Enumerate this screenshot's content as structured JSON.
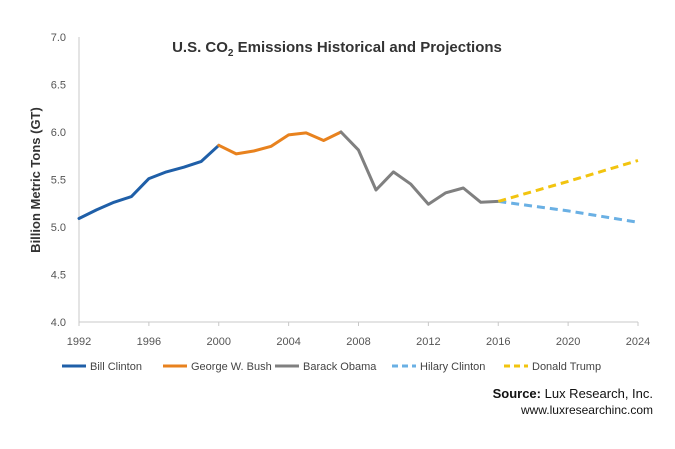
{
  "chart_data": {
    "type": "line",
    "title_parts": {
      "before": "U.S. CO",
      "subscript": "2",
      "after": " Emissions Historical and Projections"
    },
    "ylabel": "Billion Metric Tons (GT)",
    "xlabel": "",
    "xlim": [
      1992,
      2024
    ],
    "ylim": [
      4.0,
      7.0
    ],
    "x_ticks": [
      1992,
      1996,
      2000,
      2004,
      2008,
      2012,
      2016,
      2020,
      2024
    ],
    "y_ticks": [
      "4.0",
      "4.5",
      "5.0",
      "5.5",
      "6.0",
      "6.5",
      "7.0"
    ],
    "grid": false,
    "legend_position": "bottom",
    "series": [
      {
        "name": "Bill Clinton",
        "color": "#1f5fa8",
        "style": "solid",
        "points": [
          [
            1992,
            5.09
          ],
          [
            1993,
            5.18
          ],
          [
            1994,
            5.26
          ],
          [
            1995,
            5.32
          ],
          [
            1996,
            5.51
          ],
          [
            1997,
            5.58
          ],
          [
            1998,
            5.63
          ],
          [
            1999,
            5.69
          ],
          [
            2000,
            5.86
          ]
        ]
      },
      {
        "name": "George W. Bush",
        "color": "#e8821e",
        "style": "solid",
        "points": [
          [
            2000,
            5.86
          ],
          [
            2001,
            5.77
          ],
          [
            2002,
            5.8
          ],
          [
            2003,
            5.85
          ],
          [
            2004,
            5.97
          ],
          [
            2005,
            5.99
          ],
          [
            2006,
            5.91
          ],
          [
            2007,
            6.0
          ]
        ]
      },
      {
        "name": "Barack Obama",
        "color": "#808080",
        "style": "solid",
        "points": [
          [
            2007,
            6.0
          ],
          [
            2008,
            5.81
          ],
          [
            2009,
            5.39
          ],
          [
            2010,
            5.58
          ],
          [
            2011,
            5.45
          ],
          [
            2012,
            5.24
          ],
          [
            2013,
            5.36
          ],
          [
            2014,
            5.41
          ],
          [
            2015,
            5.26
          ],
          [
            2016,
            5.27
          ]
        ]
      },
      {
        "name": "Hilary Clinton",
        "color": "#6ab0e4",
        "style": "dashed",
        "points": [
          [
            2016,
            5.27
          ],
          [
            2020,
            5.17
          ],
          [
            2024,
            5.05
          ]
        ]
      },
      {
        "name": "Donald Trump",
        "color": "#f2c40f",
        "style": "dashed",
        "points": [
          [
            2016,
            5.27
          ],
          [
            2020,
            5.48
          ],
          [
            2024,
            5.7
          ]
        ]
      }
    ]
  },
  "source": {
    "label": "Source:",
    "text": " Lux Research, Inc.",
    "url": "www.luxresearchinc.com"
  }
}
